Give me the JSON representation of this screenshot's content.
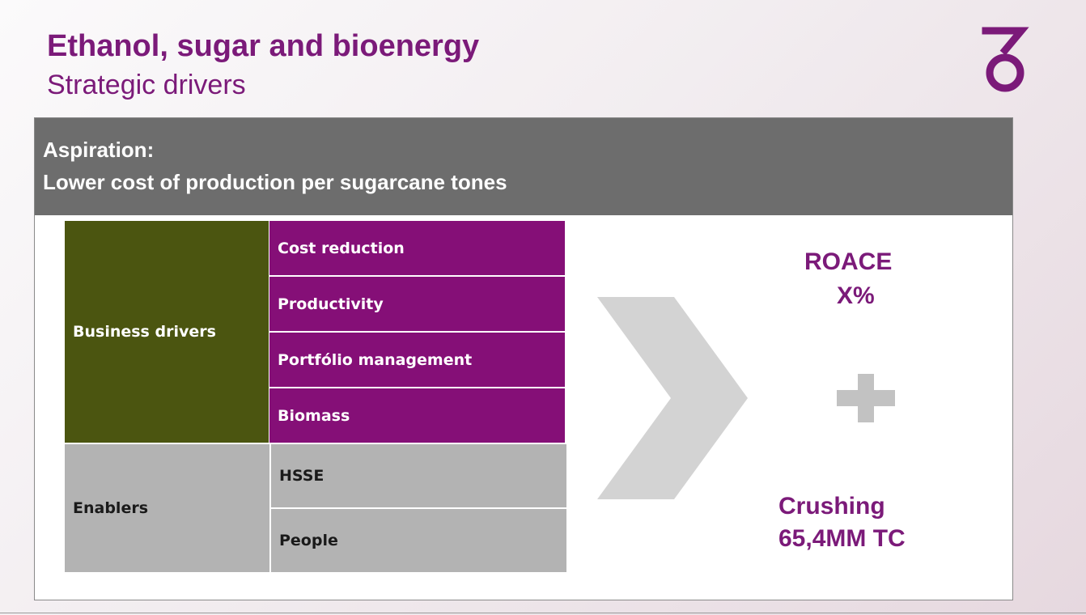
{
  "title": "Ethanol, sugar and bioenergy",
  "subtitle": "Strategic drivers",
  "logo": {
    "icon": "cosan-logo-icon",
    "color": "#7b1a79"
  },
  "aspiration": {
    "label": "Aspiration:",
    "text": "Lower cost of production per sugarcane tones"
  },
  "business_drivers": {
    "label": "Business drivers",
    "items": [
      "Cost reduction",
      "Productivity",
      "Portfólio management",
      "Biomass"
    ]
  },
  "enablers": {
    "label": "Enablers",
    "items": [
      "HSSE",
      "People"
    ]
  },
  "outcomes": {
    "roace_label": "ROACE",
    "roace_value": "X%",
    "crushing_label": "Crushing",
    "crushing_value": "65,4MM TC"
  },
  "icons": {
    "arrow": "chevron-right-icon",
    "plus": "plus-icon"
  },
  "colors": {
    "brand_purple": "#7b1a79",
    "driver_purple": "#850f77",
    "olive": "#4b5510",
    "grey": "#b3b3b3",
    "header_grey": "#6d6d6d"
  }
}
